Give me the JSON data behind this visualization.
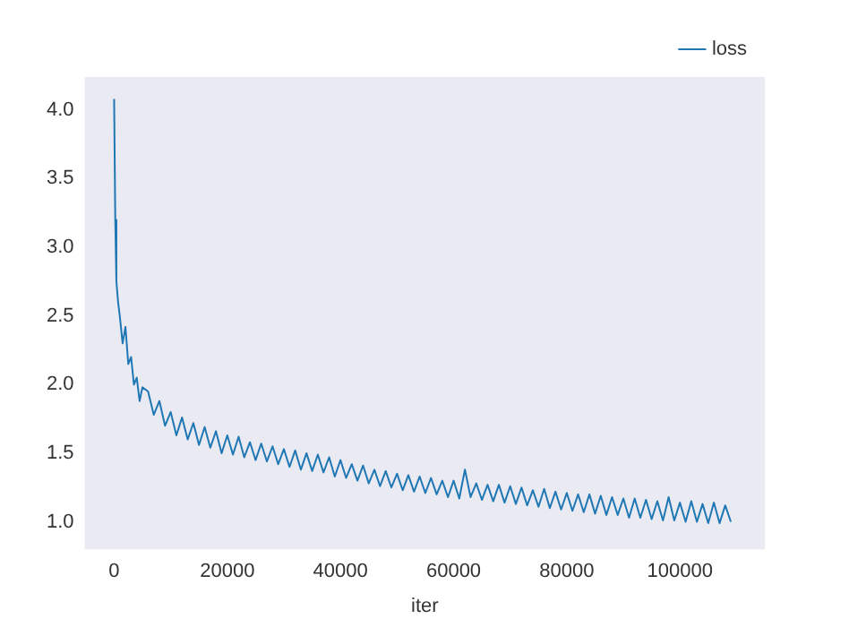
{
  "chart_data": {
    "type": "line",
    "xlabel": "iter",
    "x": [
      0,
      200,
      400,
      700,
      1000,
      1500,
      2000,
      2500,
      3000,
      3500,
      4000,
      4500,
      5000,
      6000,
      7000,
      8000,
      9000,
      10000,
      11000,
      12000,
      13000,
      14000,
      15000,
      16000,
      17000,
      18000,
      19000,
      20000,
      21000,
      22000,
      23000,
      24000,
      25000,
      26000,
      27000,
      28000,
      29000,
      30000,
      31000,
      32000,
      33000,
      34000,
      35000,
      36000,
      37000,
      38000,
      39000,
      40000,
      41000,
      42000,
      43000,
      44000,
      45000,
      46000,
      47000,
      48000,
      49000,
      50000,
      51000,
      52000,
      53000,
      54000,
      55000,
      56000,
      57000,
      58000,
      59000,
      60000,
      61000,
      62000,
      63000,
      64000,
      65000,
      66000,
      67000,
      68000,
      69000,
      70000,
      71000,
      72000,
      73000,
      74000,
      75000,
      76000,
      77000,
      78000,
      79000,
      80000,
      81000,
      82000,
      83000,
      84000,
      85000,
      86000,
      87000,
      88000,
      89000,
      90000,
      91000,
      92000,
      93000,
      94000,
      95000,
      96000,
      97000,
      98000,
      99000,
      100000,
      101000,
      102000,
      103000,
      104000,
      105000,
      106000,
      107000,
      108000,
      109000
    ],
    "series": [
      {
        "name": "loss",
        "color": "#1f77b4",
        "values": [
          4.08,
          3.2,
          2.75,
          2.6,
          2.5,
          2.3,
          2.42,
          2.15,
          2.2,
          2.0,
          2.05,
          1.88,
          1.98,
          1.95,
          1.78,
          1.88,
          1.7,
          1.8,
          1.63,
          1.76,
          1.6,
          1.72,
          1.56,
          1.69,
          1.54,
          1.66,
          1.5,
          1.63,
          1.49,
          1.62,
          1.47,
          1.58,
          1.45,
          1.57,
          1.44,
          1.55,
          1.42,
          1.53,
          1.4,
          1.52,
          1.38,
          1.5,
          1.37,
          1.49,
          1.36,
          1.47,
          1.33,
          1.45,
          1.32,
          1.42,
          1.3,
          1.41,
          1.28,
          1.38,
          1.26,
          1.37,
          1.25,
          1.35,
          1.23,
          1.34,
          1.22,
          1.33,
          1.21,
          1.32,
          1.2,
          1.3,
          1.18,
          1.3,
          1.17,
          1.38,
          1.18,
          1.28,
          1.16,
          1.27,
          1.15,
          1.27,
          1.14,
          1.26,
          1.13,
          1.25,
          1.12,
          1.23,
          1.11,
          1.24,
          1.1,
          1.22,
          1.09,
          1.21,
          1.08,
          1.2,
          1.07,
          1.2,
          1.06,
          1.19,
          1.05,
          1.18,
          1.05,
          1.17,
          1.03,
          1.17,
          1.03,
          1.16,
          1.02,
          1.15,
          1.01,
          1.18,
          1.01,
          1.14,
          1.0,
          1.15,
          1.0,
          1.13,
          0.99,
          1.14,
          0.99,
          1.12,
          1.0
        ]
      }
    ],
    "xlim": [
      -5200,
      115000
    ],
    "xticks": [
      0,
      20000,
      40000,
      60000,
      80000,
      100000
    ],
    "ylim": [
      0.8,
      4.24
    ],
    "yticks": [
      {
        "value": 1.0,
        "label": "1.0"
      },
      {
        "value": 1.5,
        "label": "1.5"
      },
      {
        "value": 2.0,
        "label": "2.0"
      },
      {
        "value": 2.5,
        "label": "2.5"
      },
      {
        "value": 3.0,
        "label": "3.0"
      },
      {
        "value": 3.5,
        "label": "3.5"
      },
      {
        "value": 4.0,
        "label": "4.0"
      }
    ],
    "legend": "top right",
    "grid": false
  }
}
